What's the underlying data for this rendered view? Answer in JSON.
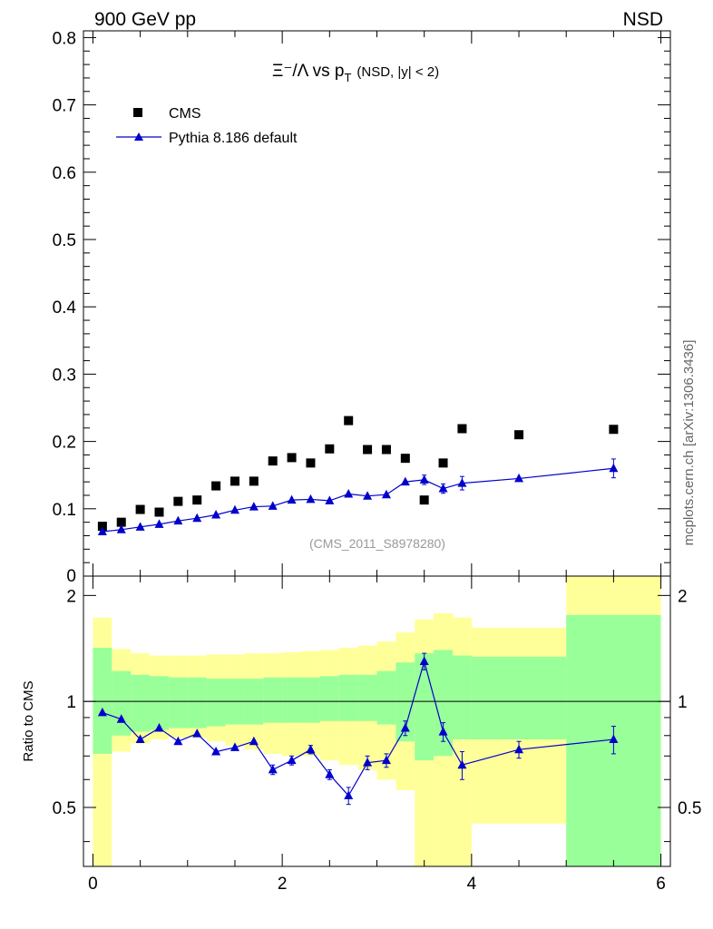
{
  "header": {
    "left_label": "900 GeV pp",
    "right_label": "NSD"
  },
  "side_label": "mcplots.cern.ch [arXiv:1306.3436]",
  "chart_data": [
    {
      "type": "scatter",
      "panel": "main",
      "title": {
        "main": "Ξ⁻/Λ  vs p",
        "sub": "T",
        "suffix": "(NSD, |y| < 2)"
      },
      "analysis_tag": "(CMS_2011_S8978280)",
      "xlim": [
        -0.1,
        6.1
      ],
      "ylim": [
        0,
        0.81
      ],
      "yticks": [
        0.1,
        0.2,
        0.3,
        0.4,
        0.5,
        0.6,
        0.7,
        0.8
      ],
      "ytick_labels": [
        "0.1",
        "0.2",
        "0.3",
        "0.4",
        "0.5",
        "0.6",
        "0.7",
        "0.8"
      ],
      "y_zero_label": "0",
      "legend_position": "top-left",
      "series": [
        {
          "name": "CMS",
          "marker": "square",
          "color": "#000000",
          "x": [
            0.1,
            0.3,
            0.5,
            0.7,
            0.9,
            1.1,
            1.3,
            1.5,
            1.7,
            1.9,
            2.1,
            2.3,
            2.5,
            2.7,
            2.9,
            3.1,
            3.3,
            3.5,
            3.7,
            3.9,
            4.5,
            5.5
          ],
          "y": [
            0.074,
            0.08,
            0.099,
            0.095,
            0.111,
            0.113,
            0.134,
            0.141,
            0.141,
            0.171,
            0.176,
            0.168,
            0.189,
            0.231,
            0.188,
            0.188,
            0.175,
            0.113,
            0.168,
            0.219,
            0.21,
            0.218
          ]
        },
        {
          "name": "Pythia 8.186 default",
          "marker": "triangle",
          "color": "#0000cc",
          "x": [
            0.1,
            0.3,
            0.5,
            0.7,
            0.9,
            1.1,
            1.3,
            1.5,
            1.7,
            1.9,
            2.1,
            2.3,
            2.5,
            2.7,
            2.9,
            3.1,
            3.3,
            3.5,
            3.7,
            3.9,
            4.5,
            5.5
          ],
          "y": [
            0.066,
            0.069,
            0.073,
            0.077,
            0.082,
            0.086,
            0.091,
            0.098,
            0.103,
            0.104,
            0.113,
            0.114,
            0.112,
            0.122,
            0.119,
            0.121,
            0.14,
            0.143,
            0.13,
            0.138,
            0.145,
            0.16
          ],
          "err": [
            0.002,
            0.002,
            0.002,
            0.002,
            0.002,
            0.002,
            0.002,
            0.002,
            0.002,
            0.002,
            0.003,
            0.003,
            0.003,
            0.003,
            0.004,
            0.004,
            0.006,
            0.007,
            0.007,
            0.01,
            0.006,
            0.014
          ]
        }
      ]
    },
    {
      "type": "line",
      "panel": "ratio",
      "ylabel": "Ratio to CMS",
      "xlim": [
        -0.1,
        6.1
      ],
      "ylim": [
        0.34,
        2.27
      ],
      "xticks": [
        0,
        2,
        4,
        6
      ],
      "xtick_labels": [
        "0",
        "2",
        "4",
        "6"
      ],
      "yticks": [
        0.5,
        1,
        2
      ],
      "ytick_labels": [
        "0.5",
        "1",
        "2"
      ],
      "reference_line": 1,
      "bands": {
        "bin_edges": [
          0.0,
          0.2,
          0.4,
          0.6,
          0.8,
          1.0,
          1.2,
          1.4,
          1.6,
          1.8,
          2.0,
          2.2,
          2.4,
          2.6,
          2.8,
          3.0,
          3.2,
          3.4,
          3.6,
          3.8,
          4.0,
          5.0,
          6.0
        ],
        "stat_color": "#99ff99",
        "syst_color": "#ffff99",
        "green_low": [
          0.71,
          0.8,
          0.82,
          0.83,
          0.84,
          0.84,
          0.85,
          0.86,
          0.86,
          0.87,
          0.87,
          0.87,
          0.88,
          0.88,
          0.88,
          0.86,
          0.77,
          0.68,
          0.7,
          0.78,
          0.78,
          0.34
        ],
        "green_high": [
          1.42,
          1.22,
          1.19,
          1.18,
          1.17,
          1.17,
          1.16,
          1.16,
          1.16,
          1.17,
          1.17,
          1.17,
          1.18,
          1.19,
          1.19,
          1.22,
          1.29,
          1.37,
          1.4,
          1.35,
          1.34,
          1.76
        ],
        "yellow_low": [
          0.34,
          0.72,
          0.76,
          0.78,
          0.79,
          0.79,
          0.77,
          0.75,
          0.73,
          0.71,
          0.7,
          0.7,
          0.68,
          0.66,
          0.64,
          0.6,
          0.56,
          0.34,
          0.34,
          0.34,
          0.45,
          0.34
        ],
        "yellow_high": [
          1.73,
          1.41,
          1.37,
          1.35,
          1.35,
          1.35,
          1.36,
          1.36,
          1.37,
          1.37,
          1.38,
          1.39,
          1.4,
          1.42,
          1.44,
          1.48,
          1.57,
          1.71,
          1.78,
          1.73,
          1.62,
          2.27
        ]
      },
      "series": [
        {
          "name": "Pythia 8.186 default",
          "marker": "triangle",
          "color": "#0000cc",
          "x": [
            0.1,
            0.3,
            0.5,
            0.7,
            0.9,
            1.1,
            1.3,
            1.5,
            1.7,
            1.9,
            2.1,
            2.3,
            2.5,
            2.7,
            2.9,
            3.1,
            3.3,
            3.5,
            3.7,
            3.9,
            4.5,
            5.5
          ],
          "y": [
            0.93,
            0.89,
            0.78,
            0.84,
            0.77,
            0.81,
            0.72,
            0.74,
            0.77,
            0.64,
            0.68,
            0.73,
            0.62,
            0.54,
            0.67,
            0.68,
            0.84,
            1.3,
            0.82,
            0.66,
            0.73,
            0.78
          ],
          "err": [
            0.01,
            0.01,
            0.01,
            0.01,
            0.01,
            0.01,
            0.01,
            0.01,
            0.01,
            0.02,
            0.02,
            0.02,
            0.02,
            0.03,
            0.03,
            0.03,
            0.04,
            0.07,
            0.05,
            0.06,
            0.04,
            0.07
          ]
        }
      ]
    }
  ]
}
